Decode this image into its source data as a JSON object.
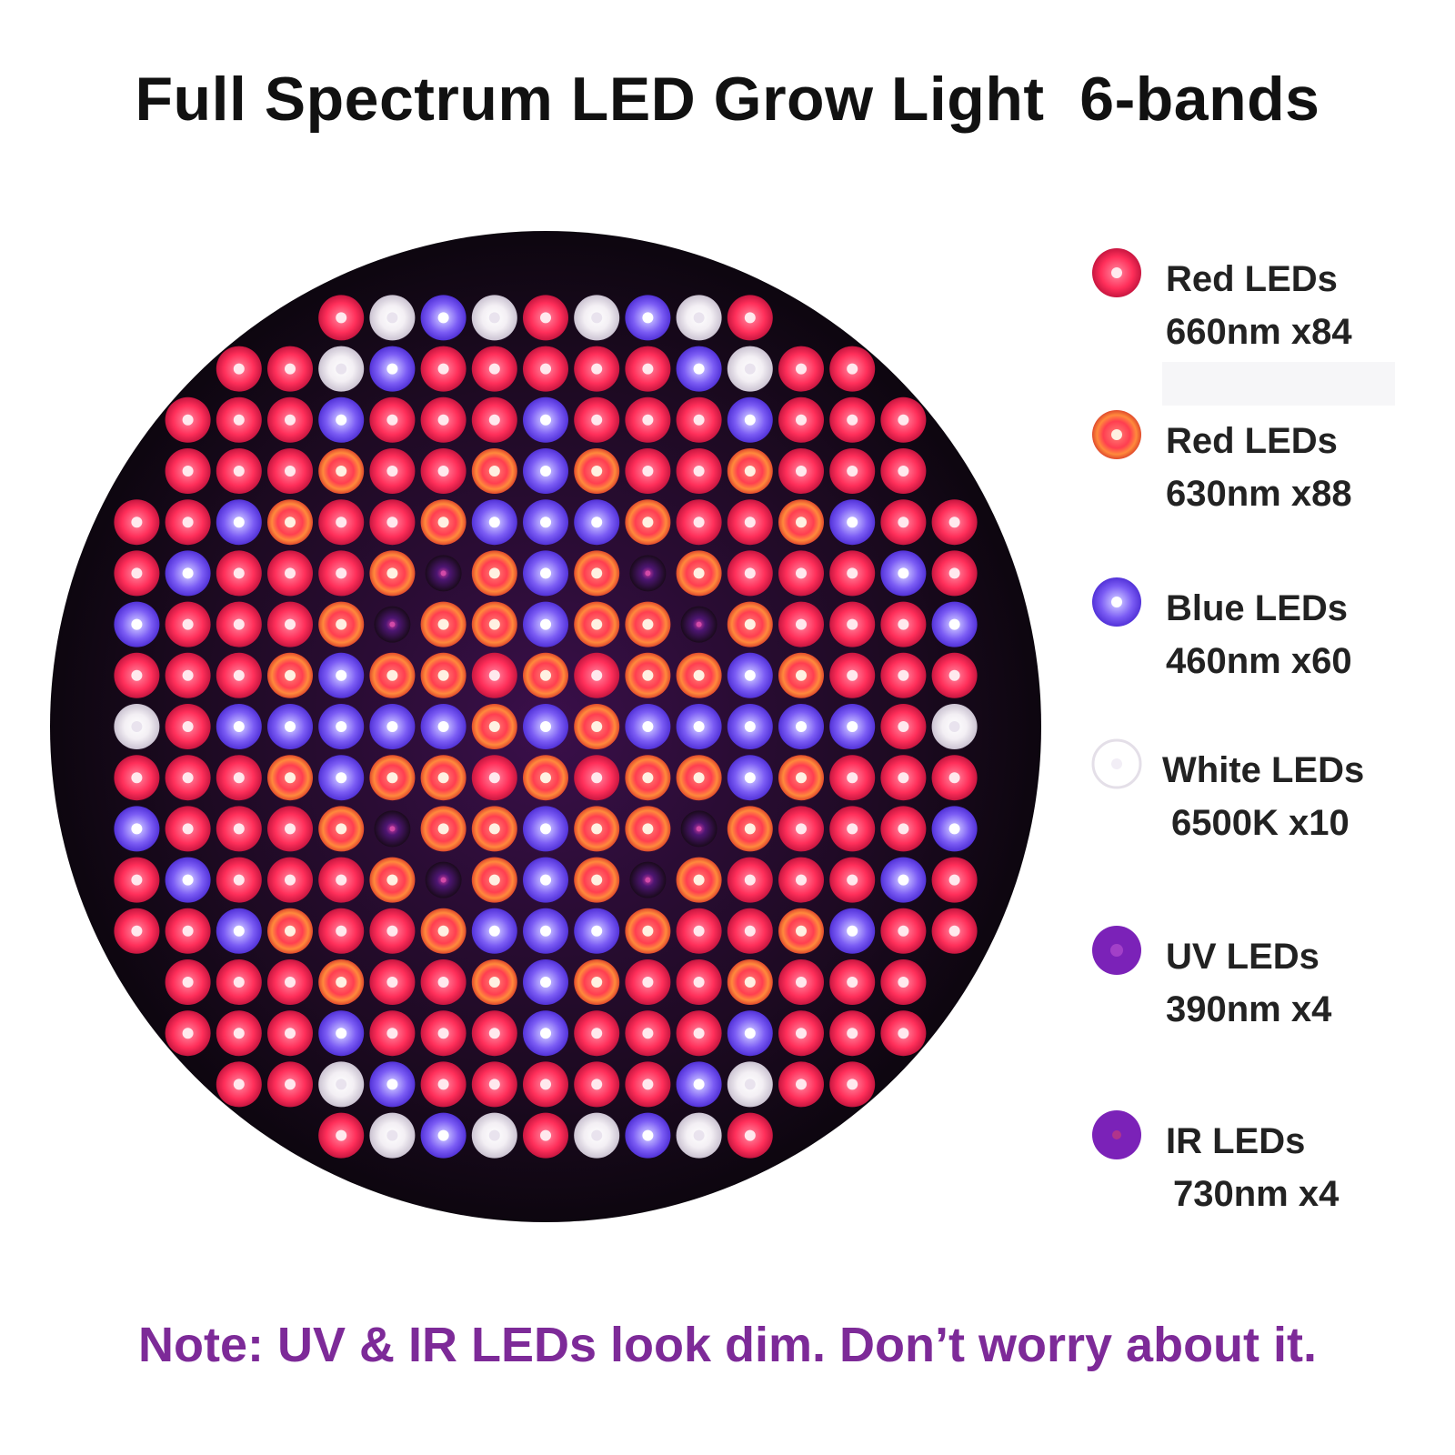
{
  "title": "Full Spectrum LED Grow Light  6-bands",
  "legend": [
    {
      "name": "Red LEDs",
      "spec": "660nm x84",
      "icon": "red-660-led-icon",
      "color": "#ff3d63"
    },
    {
      "name": "Red LEDs",
      "spec": "630nm x88",
      "icon": "red-630-led-icon",
      "color": "#ff8a3c"
    },
    {
      "name": "Blue LEDs",
      "spec": "460nm x60",
      "icon": "blue-led-icon",
      "color": "#8e7cff"
    },
    {
      "name": "White LEDs",
      "spec": "6500K x10",
      "icon": "white-led-icon",
      "color": "#f2eef6"
    },
    {
      "name": "UV LEDs",
      "spec": "390nm x4",
      "icon": "uv-led-icon",
      "color": "#7b22b8"
    },
    {
      "name": "IR LEDs",
      "spec": "730nm x4",
      "icon": "ir-led-icon",
      "color": "#7b22b8"
    }
  ],
  "note": "Note: UV & IR LEDs look dim. Don’t worry about it.",
  "colors": {
    "board": "#1a0a1c",
    "note": "#7d2a98",
    "title": "#111111"
  }
}
